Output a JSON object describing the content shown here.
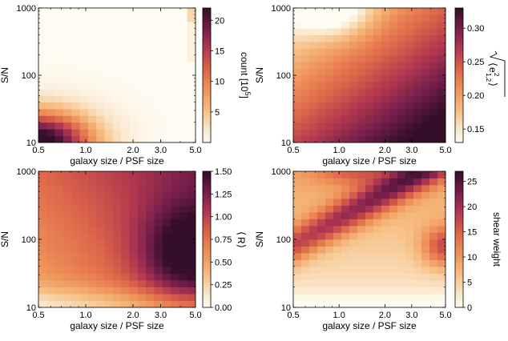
{
  "chart_data": [
    {
      "type": "heatmap",
      "title": "",
      "xlabel": "galaxy size / PSF size",
      "ylabel": "S/N",
      "xscale": "log",
      "yscale": "log",
      "xlim": [
        0.5,
        5.0
      ],
      "ylim": [
        10,
        1000
      ],
      "xticks": [
        0.5,
        1.0,
        2.0,
        3.0,
        5.0
      ],
      "xtick_labels": [
        "0.5",
        "1.0",
        "2.0",
        "3.0",
        "5.0"
      ],
      "yticks": [
        10,
        100,
        1000
      ],
      "ytick_labels": [
        "10",
        "100",
        "1000"
      ],
      "grid": {
        "nx": 19,
        "ny": 20
      },
      "colorbar": {
        "label": "count [10^5]",
        "label_main": "count [10",
        "label_exp": "5",
        "label_end": "]",
        "min": 0,
        "max": 22,
        "ticks": [
          5,
          10,
          15,
          20
        ],
        "tick_labels": [
          "5",
          "10",
          "15",
          "20"
        ]
      },
      "pattern": "high counts concentrated at low S/N and small galaxy size; near-zero elsewhere; slight excess along right edge near top"
    },
    {
      "type": "heatmap",
      "title": "",
      "xlabel": "galaxy size / PSF size",
      "ylabel": "S/N",
      "xscale": "log",
      "yscale": "log",
      "xlim": [
        0.5,
        5.0
      ],
      "ylim": [
        10,
        1000
      ],
      "xticks": [
        0.5,
        1.0,
        2.0,
        3.0,
        5.0
      ],
      "xtick_labels": [
        "0.5",
        "1.0",
        "2.0",
        "3.0",
        "5.0"
      ],
      "yticks": [
        10,
        100,
        1000
      ],
      "ytick_labels": [
        "10",
        "100",
        "1000"
      ],
      "grid": {
        "nx": 19,
        "ny": 20
      },
      "colorbar": {
        "label": "sqrt(<e_{1,2}^2>)",
        "label_main": "e",
        "label_sup": "2",
        "label_sub": "1,2",
        "min": 0.13,
        "max": 0.33,
        "ticks": [
          0.15,
          0.2,
          0.25,
          0.3
        ],
        "tick_labels": [
          "0.15",
          "0.20",
          "0.25",
          "0.30"
        ]
      },
      "pattern": "minimum at high S/N and small size (white), maximum toward large size and low S/N (dark)"
    },
    {
      "type": "heatmap",
      "title": "",
      "xlabel": "galaxy size / PSF size",
      "ylabel": "S/N",
      "xscale": "log",
      "yscale": "log",
      "xlim": [
        0.5,
        5.0
      ],
      "ylim": [
        10,
        1000
      ],
      "xticks": [
        0.5,
        1.0,
        2.0,
        3.0,
        5.0
      ],
      "xtick_labels": [
        "0.5",
        "1.0",
        "2.0",
        "3.0",
        "5.0"
      ],
      "yticks": [
        10,
        100,
        1000
      ],
      "ytick_labels": [
        "10",
        "100",
        "1000"
      ],
      "grid": {
        "nx": 19,
        "ny": 20
      },
      "colorbar": {
        "label": "<R>",
        "label_main": "R",
        "min": 0.0,
        "max": 1.5,
        "ticks": [
          0.0,
          0.25,
          0.5,
          0.75,
          1.0,
          1.25,
          1.5
        ],
        "tick_labels": [
          "0.00",
          "0.25",
          "0.50",
          "0.75",
          "1.00",
          "1.25",
          "1.50"
        ]
      },
      "pattern": "responsivity increases with galaxy size, peaking near size 4 and S/N 30-100; lower at low S/N"
    },
    {
      "type": "heatmap",
      "title": "",
      "xlabel": "galaxy size / PSF size",
      "ylabel": "S/N",
      "xscale": "log",
      "yscale": "log",
      "xlim": [
        0.5,
        5.0
      ],
      "ylim": [
        10,
        1000
      ],
      "xticks": [
        0.5,
        1.0,
        2.0,
        3.0,
        5.0
      ],
      "xtick_labels": [
        "0.5",
        "1.0",
        "2.0",
        "3.0",
        "5.0"
      ],
      "yticks": [
        10,
        100,
        1000
      ],
      "ytick_labels": [
        "10",
        "100",
        "1000"
      ],
      "grid": {
        "nx": 19,
        "ny": 20
      },
      "colorbar": {
        "label": "shear weight",
        "min": 0,
        "max": 27,
        "ticks": [
          0,
          5,
          10,
          15,
          20,
          25
        ],
        "tick_labels": [
          "0",
          "5",
          "10",
          "15",
          "20",
          "25"
        ]
      },
      "pattern": "high weight band running from small size at moderate S/N up to high S/N, and toward large size at mid S/N; low at low S/N"
    }
  ]
}
